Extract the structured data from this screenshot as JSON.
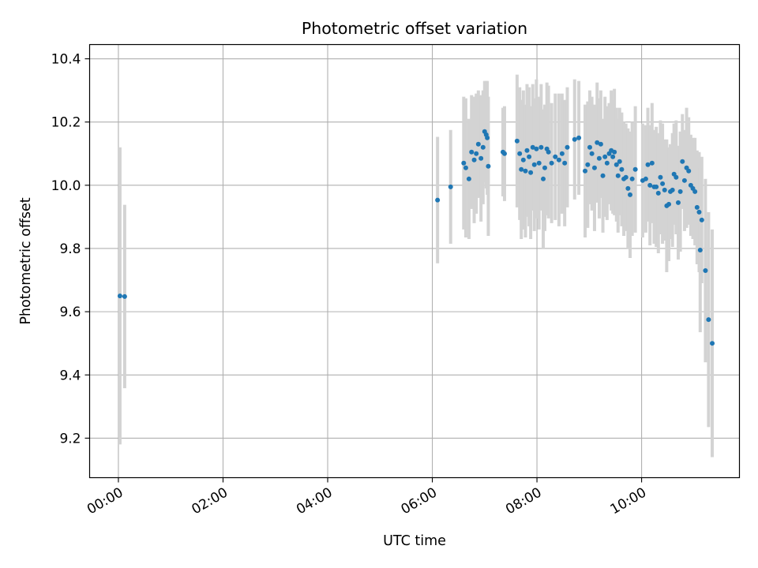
{
  "chart_data": {
    "type": "scatter",
    "title": "Photometric offset variation",
    "xlabel": "UTC time",
    "ylabel": "Photometric offset",
    "x_unit": "hours",
    "xlim": [
      -0.55,
      11.87
    ],
    "ylim": [
      9.075,
      10.445
    ],
    "grid": true,
    "x_ticks": [
      {
        "value": 0,
        "label": "00:00"
      },
      {
        "value": 2,
        "label": "02:00"
      },
      {
        "value": 4,
        "label": "04:00"
      },
      {
        "value": 6,
        "label": "06:00"
      },
      {
        "value": 8,
        "label": "08:00"
      },
      {
        "value": 10,
        "label": "10:00"
      }
    ],
    "y_ticks": [
      {
        "value": 9.2,
        "label": "9.2"
      },
      {
        "value": 9.4,
        "label": "9.4"
      },
      {
        "value": 9.6,
        "label": "9.6"
      },
      {
        "value": 9.8,
        "label": "9.8"
      },
      {
        "value": 10.0,
        "label": "10.0"
      },
      {
        "value": 10.2,
        "label": "10.2"
      },
      {
        "value": 10.4,
        "label": "10.4"
      }
    ],
    "series": [
      {
        "name": "photometric offset",
        "marker_color": "#1f77b4",
        "errorbar_color": "#d3d3d3",
        "points": [
          [
            0.03,
            9.65,
            0.47
          ],
          [
            0.12,
            9.648,
            0.29
          ],
          [
            6.1,
            9.953,
            0.2
          ],
          [
            6.35,
            9.995,
            0.18
          ],
          [
            6.6,
            10.07,
            0.21
          ],
          [
            6.64,
            10.055,
            0.22
          ],
          [
            6.7,
            10.02,
            0.19
          ],
          [
            6.75,
            10.105,
            0.18
          ],
          [
            6.8,
            10.08,
            0.2
          ],
          [
            6.84,
            10.1,
            0.19
          ],
          [
            6.88,
            10.13,
            0.17
          ],
          [
            6.93,
            10.085,
            0.2
          ],
          [
            6.97,
            10.12,
            0.18
          ],
          [
            7.0,
            10.17,
            0.16
          ],
          [
            7.03,
            10.16,
            0.17
          ],
          [
            7.05,
            10.15,
            0.18
          ],
          [
            7.07,
            10.06,
            0.22
          ],
          [
            7.35,
            10.105,
            0.14
          ],
          [
            7.38,
            10.1,
            0.15
          ],
          [
            7.62,
            10.14,
            0.21
          ],
          [
            7.67,
            10.1,
            0.21
          ],
          [
            7.7,
            10.05,
            0.22
          ],
          [
            7.74,
            10.08,
            0.22
          ],
          [
            7.78,
            10.045,
            0.21
          ],
          [
            7.81,
            10.11,
            0.21
          ],
          [
            7.85,
            10.09,
            0.22
          ],
          [
            7.88,
            10.04,
            0.21
          ],
          [
            7.92,
            10.12,
            0.2
          ],
          [
            7.95,
            10.065,
            0.21
          ],
          [
            7.99,
            10.115,
            0.22
          ],
          [
            8.04,
            10.07,
            0.21
          ],
          [
            8.08,
            10.12,
            0.2
          ],
          [
            8.12,
            10.02,
            0.22
          ],
          [
            8.15,
            10.055,
            0.2
          ],
          [
            8.19,
            10.115,
            0.21
          ],
          [
            8.22,
            10.105,
            0.21
          ],
          [
            8.28,
            10.07,
            0.19
          ],
          [
            8.35,
            10.09,
            0.2
          ],
          [
            8.42,
            10.08,
            0.21
          ],
          [
            8.48,
            10.1,
            0.19
          ],
          [
            8.53,
            10.07,
            0.2
          ],
          [
            8.58,
            10.12,
            0.19
          ],
          [
            8.72,
            10.145,
            0.19
          ],
          [
            8.8,
            10.15,
            0.18
          ],
          [
            8.92,
            10.045,
            0.21
          ],
          [
            8.97,
            10.065,
            0.2
          ],
          [
            9.01,
            10.12,
            0.18
          ],
          [
            9.05,
            10.1,
            0.18
          ],
          [
            9.1,
            10.055,
            0.2
          ],
          [
            9.15,
            10.135,
            0.19
          ],
          [
            9.19,
            10.085,
            0.19
          ],
          [
            9.22,
            10.13,
            0.17
          ],
          [
            9.26,
            10.03,
            0.18
          ],
          [
            9.3,
            10.09,
            0.19
          ],
          [
            9.34,
            10.07,
            0.18
          ],
          [
            9.38,
            10.1,
            0.16
          ],
          [
            9.42,
            10.11,
            0.19
          ],
          [
            9.45,
            10.09,
            0.18
          ],
          [
            9.48,
            10.105,
            0.2
          ],
          [
            9.52,
            10.065,
            0.18
          ],
          [
            9.55,
            10.03,
            0.18
          ],
          [
            9.58,
            10.075,
            0.17
          ],
          [
            9.62,
            10.05,
            0.18
          ],
          [
            9.66,
            10.02,
            0.18
          ],
          [
            9.7,
            10.025,
            0.17
          ],
          [
            9.74,
            9.99,
            0.19
          ],
          [
            9.78,
            9.97,
            0.2
          ],
          [
            9.82,
            10.02,
            0.18
          ],
          [
            9.88,
            10.05,
            0.2
          ],
          [
            10.02,
            10.015,
            0.18
          ],
          [
            10.08,
            10.02,
            0.17
          ],
          [
            10.12,
            10.065,
            0.18
          ],
          [
            10.16,
            10.0,
            0.19
          ],
          [
            10.2,
            10.07,
            0.19
          ],
          [
            10.24,
            9.995,
            0.18
          ],
          [
            10.28,
            9.995,
            0.19
          ],
          [
            10.32,
            9.975,
            0.19
          ],
          [
            10.36,
            10.025,
            0.18
          ],
          [
            10.4,
            10.005,
            0.19
          ],
          [
            10.44,
            9.985,
            0.16
          ],
          [
            10.48,
            9.935,
            0.21
          ],
          [
            10.52,
            9.94,
            0.18
          ],
          [
            10.55,
            9.98,
            0.15
          ],
          [
            10.59,
            9.985,
            0.18
          ],
          [
            10.62,
            10.035,
            0.16
          ],
          [
            10.66,
            10.025,
            0.18
          ],
          [
            10.7,
            9.945,
            0.18
          ],
          [
            10.74,
            9.98,
            0.19
          ],
          [
            10.78,
            10.075,
            0.15
          ],
          [
            10.82,
            10.015,
            0.16
          ],
          [
            10.86,
            10.055,
            0.19
          ],
          [
            10.9,
            10.045,
            0.17
          ],
          [
            10.94,
            10.0,
            0.16
          ],
          [
            10.98,
            9.99,
            0.16
          ],
          [
            11.02,
            9.98,
            0.17
          ],
          [
            11.06,
            9.93,
            0.18
          ],
          [
            11.1,
            9.915,
            0.19
          ],
          [
            11.15,
            9.89,
            0.2
          ],
          [
            11.12,
            9.795,
            0.26
          ],
          [
            11.22,
            9.73,
            0.29
          ],
          [
            11.28,
            9.575,
            0.34
          ],
          [
            11.35,
            9.5,
            0.36
          ]
        ]
      }
    ]
  }
}
